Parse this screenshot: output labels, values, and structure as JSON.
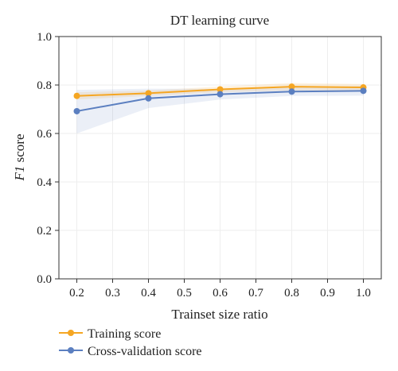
{
  "chart_data": {
    "type": "line",
    "title": "DT learning curve",
    "xlabel": "Trainset size ratio",
    "ylabel_italic": "F1",
    "ylabel_rest": " score",
    "x": [
      0.2,
      0.4,
      0.6,
      0.8,
      1.0
    ],
    "xlim": [
      0.15,
      1.05
    ],
    "ylim": [
      0.0,
      1.0
    ],
    "xticks": [
      "0.2",
      "0.3",
      "0.4",
      "0.5",
      "0.6",
      "0.7",
      "0.8",
      "0.9",
      "1.0"
    ],
    "yticks": [
      "0.0",
      "0.2",
      "0.4",
      "0.6",
      "0.8",
      "1.0"
    ],
    "grid": true,
    "legend_position": "bottom-left, below plot",
    "series": [
      {
        "name": "Training score",
        "color": "#f5a623",
        "values": [
          0.755,
          0.766,
          0.782,
          0.793,
          0.79
        ],
        "band_low": [
          0.74,
          0.755,
          0.77,
          0.778,
          0.776
        ],
        "band_high": [
          0.77,
          0.777,
          0.794,
          0.808,
          0.804
        ]
      },
      {
        "name": "Cross-validation score",
        "color": "#5b7fc0",
        "values": [
          0.692,
          0.745,
          0.762,
          0.773,
          0.776
        ],
        "band_low": [
          0.6,
          0.705,
          0.74,
          0.755,
          0.756
        ],
        "band_high": [
          0.78,
          0.785,
          0.784,
          0.791,
          0.796
        ]
      }
    ]
  }
}
